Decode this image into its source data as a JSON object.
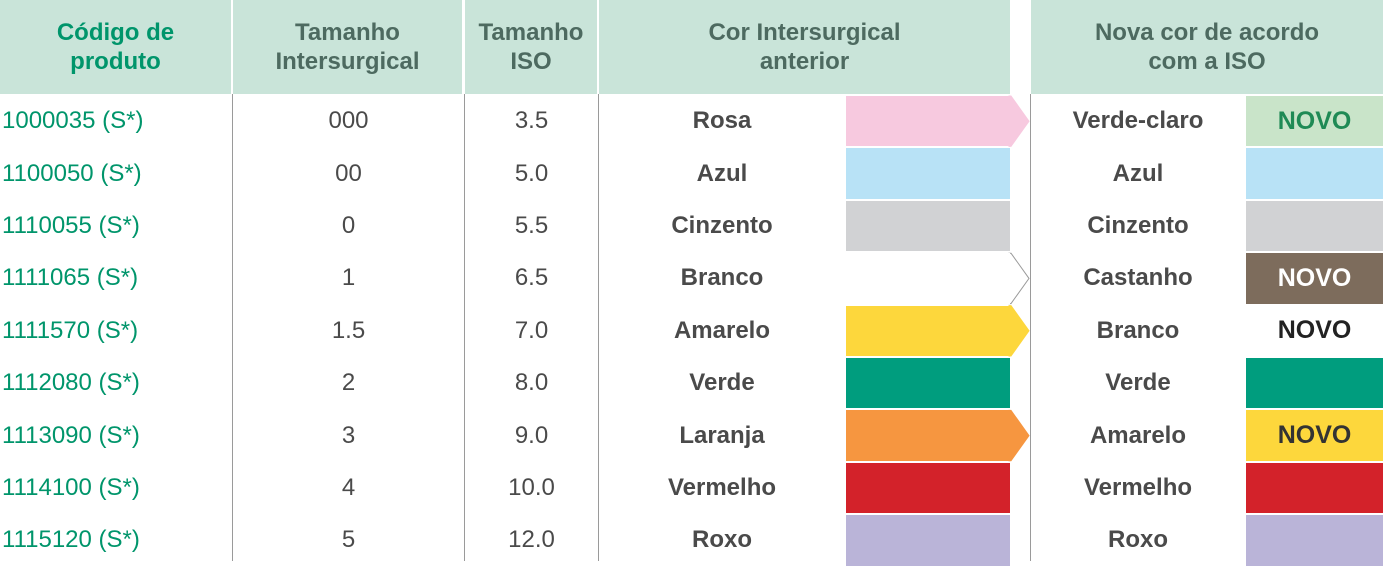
{
  "header": {
    "codigo": [
      "Código de",
      "produto"
    ],
    "tamanho_intersurgical": [
      "Tamanho",
      "Intersurgical"
    ],
    "tamanho_iso": [
      "Tamanho",
      "ISO"
    ],
    "cor_anterior": [
      "Cor Intersurgical",
      "anterior"
    ],
    "nova_cor": [
      "Nova cor de acordo",
      "com a ISO"
    ]
  },
  "rows": [
    {
      "codigo": "1000035 (S*)",
      "tamanho": "000",
      "iso": "3.5",
      "cor_anterior": {
        "name": "Rosa",
        "color": "#f7c9df"
      },
      "nova_cor": {
        "name": "Verde-claro",
        "color": "#c9e4c9",
        "badge": "NOVO",
        "badge_color": "#1f8a55"
      }
    },
    {
      "codigo": "1100050 (S*)",
      "tamanho": "00",
      "iso": "5.0",
      "cor_anterior": {
        "name": "Azul",
        "color": "#b8e2f6"
      },
      "nova_cor": {
        "name": "Azul",
        "color": "#b8e2f6"
      }
    },
    {
      "codigo": "1110055 (S*)",
      "tamanho": "0",
      "iso": "5.5",
      "cor_anterior": {
        "name": "Cinzento",
        "color": "#d1d2d4"
      },
      "nova_cor": {
        "name": "Cinzento",
        "color": "#d1d2d4"
      }
    },
    {
      "codigo": "1111065 (S*)",
      "tamanho": "1",
      "iso": "6.5",
      "cor_anterior": {
        "name": "Branco",
        "color": "#ffffff"
      },
      "nova_cor": {
        "name": "Castanho",
        "color": "#7d6c5c",
        "badge": "NOVO",
        "badge_color": "#ffffff"
      }
    },
    {
      "codigo": "1111570 (S*)",
      "tamanho": "1.5",
      "iso": "7.0",
      "cor_anterior": {
        "name": "Amarelo",
        "color": "#fdd73c"
      },
      "nova_cor": {
        "name": "Branco",
        "color": "#ffffff",
        "badge": "NOVO",
        "badge_color": "#222222"
      }
    },
    {
      "codigo": "1112080 (S*)",
      "tamanho": "2",
      "iso": "8.0",
      "cor_anterior": {
        "name": "Verde",
        "color": "#009d7e"
      },
      "nova_cor": {
        "name": "Verde",
        "color": "#009d7e"
      }
    },
    {
      "codigo": "1113090 (S*)",
      "tamanho": "3",
      "iso": "9.0",
      "cor_anterior": {
        "name": "Laranja",
        "color": "#f69640"
      },
      "nova_cor": {
        "name": "Amarelo",
        "color": "#fdd73c",
        "badge": "NOVO",
        "badge_color": "#333333"
      }
    },
    {
      "codigo": "1114100 (S*)",
      "tamanho": "4",
      "iso": "10.0",
      "cor_anterior": {
        "name": "Vermelho",
        "color": "#d3222a"
      },
      "nova_cor": {
        "name": "Vermelho",
        "color": "#d3222a"
      }
    },
    {
      "codigo": "1115120 (S*)",
      "tamanho": "5",
      "iso": "12.0",
      "cor_anterior": {
        "name": "Roxo",
        "color": "#bab4d8"
      },
      "nova_cor": {
        "name": "Roxo",
        "color": "#bab4d8"
      }
    }
  ]
}
